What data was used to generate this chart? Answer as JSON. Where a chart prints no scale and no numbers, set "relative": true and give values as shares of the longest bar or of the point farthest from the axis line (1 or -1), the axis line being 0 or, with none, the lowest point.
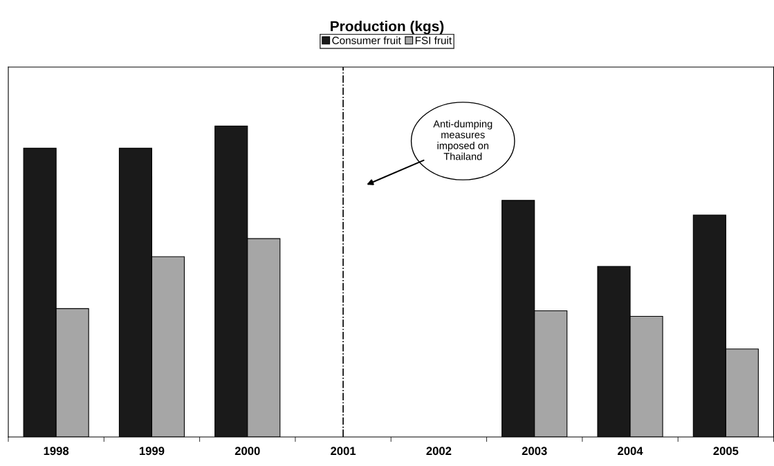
{
  "chart_data": {
    "type": "bar",
    "title": "Production (kgs)",
    "relative": true,
    "categories": [
      "1998",
      "1999",
      "2000",
      "2001",
      "2002",
      "2003",
      "2004",
      "2005"
    ],
    "series": [
      {
        "name": "Consumer fruit",
        "color": "#1a1a1a",
        "values": [
          0.929,
          0.929,
          1.0,
          null,
          null,
          0.761,
          0.549,
          0.714
        ]
      },
      {
        "name": "FSI fruit",
        "color": "#a6a6a6",
        "values": [
          0.413,
          0.58,
          0.638,
          null,
          null,
          0.406,
          0.388,
          0.283
        ]
      }
    ],
    "ref_lines": [
      {
        "axis": "x",
        "value": "2001",
        "color": "#000000",
        "line_style": "dashdot"
      }
    ],
    "annotations": [
      "Anti-dumping\nmeasures\nimposed on\nThailand"
    ],
    "legend": "top",
    "grid": false
  }
}
